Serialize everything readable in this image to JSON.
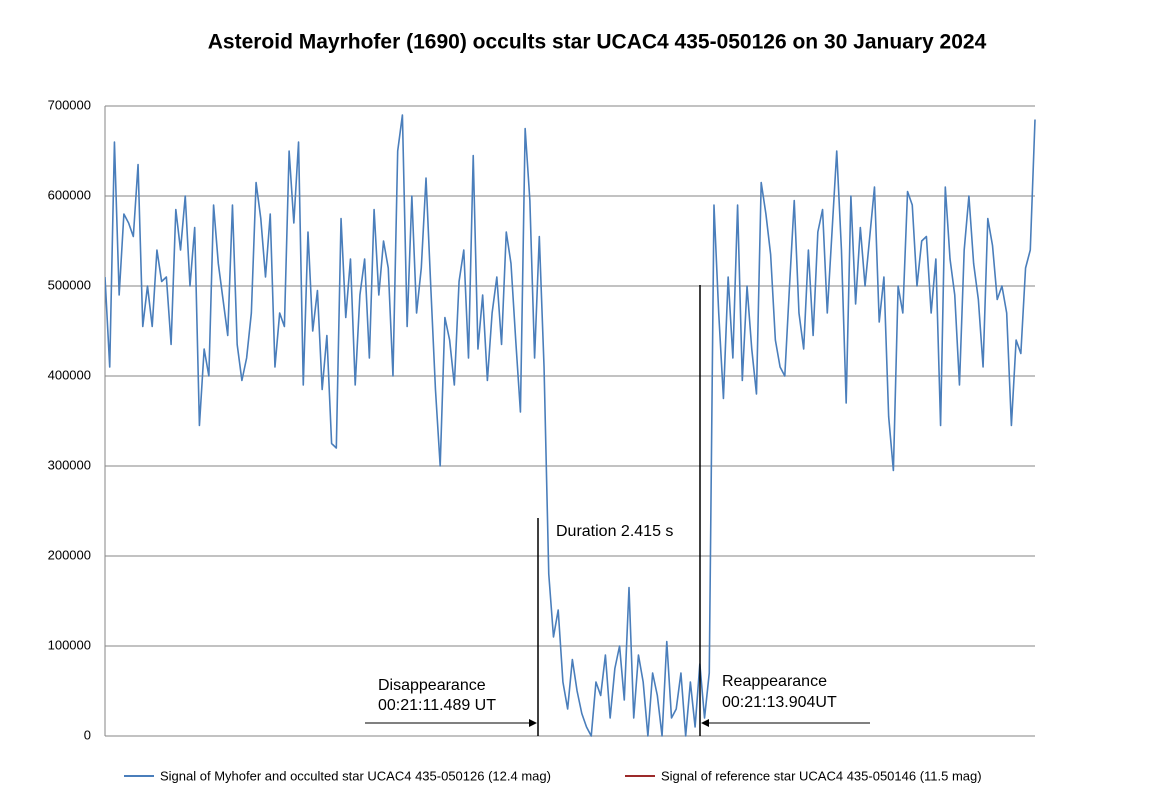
{
  "chart_data": {
    "type": "line",
    "title": "Asteroid Mayrhofer (1690) occults star UCAC4 435-050126 on 30 January 2024",
    "annotations": [
      "Duration 2.415 s",
      "Disappearance",
      "00:21:11.489 UT",
      "Reappearance",
      "00:21:13.904UT"
    ],
    "ylim": [
      0,
      700000
    ],
    "yticks": [
      0,
      100000,
      200000,
      300000,
      400000,
      500000,
      600000,
      700000
    ],
    "grid": true,
    "legend": "bottom",
    "series": [
      {
        "name": "Signal of Myhofer and occulted star UCAC4 435-050126 (12.4 mag)",
        "color": "#4a7ebb",
        "values": [
          510000,
          410000,
          660000,
          490000,
          580000,
          570000,
          555000,
          635000,
          455000,
          500000,
          455000,
          540000,
          505000,
          510000,
          435000,
          585000,
          540000,
          600000,
          500000,
          565000,
          345000,
          430000,
          400000,
          590000,
          525000,
          485000,
          445000,
          590000,
          435000,
          395000,
          420000,
          470000,
          615000,
          575000,
          510000,
          580000,
          410000,
          470000,
          455000,
          650000,
          570000,
          660000,
          390000,
          560000,
          450000,
          495000,
          385000,
          445000,
          325000,
          320000,
          575000,
          465000,
          530000,
          390000,
          490000,
          530000,
          420000,
          585000,
          490000,
          550000,
          520000,
          400000,
          650000,
          690000,
          455000,
          600000,
          470000,
          520000,
          620000,
          500000,
          385000,
          300000,
          465000,
          440000,
          390000,
          505000,
          540000,
          420000,
          645000,
          430000,
          490000,
          395000,
          470000,
          510000,
          435000,
          560000,
          525000,
          440000,
          360000,
          675000,
          595000,
          420000,
          555000,
          410000,
          180000,
          110000,
          140000,
          60000,
          30000,
          85000,
          50000,
          25000,
          10000,
          0,
          60000,
          45000,
          90000,
          20000,
          75000,
          100000,
          40000,
          165000,
          20000,
          90000,
          60000,
          0,
          70000,
          45000,
          0,
          105000,
          20000,
          30000,
          70000,
          0,
          60000,
          10000,
          80000,
          20000,
          70000,
          590000,
          470000,
          375000,
          510000,
          420000,
          590000,
          395000,
          500000,
          430000,
          380000,
          615000,
          580000,
          535000,
          440000,
          410000,
          400000,
          500000,
          595000,
          470000,
          430000,
          540000,
          445000,
          560000,
          585000,
          470000,
          560000,
          650000,
          540000,
          370000,
          600000,
          480000,
          565000,
          500000,
          555000,
          610000,
          460000,
          510000,
          355000,
          295000,
          500000,
          470000,
          605000,
          590000,
          500000,
          550000,
          555000,
          470000,
          530000,
          345000,
          610000,
          530000,
          490000,
          390000,
          540000,
          600000,
          525000,
          485000,
          410000,
          575000,
          545000,
          485000,
          500000,
          470000,
          345000,
          440000,
          425000,
          520000,
          540000,
          685000
        ]
      },
      {
        "name": "Signal of reference star UCAC4 435-050146 (11.5 mag)",
        "color": "#9c2a2a",
        "values": []
      }
    ]
  }
}
